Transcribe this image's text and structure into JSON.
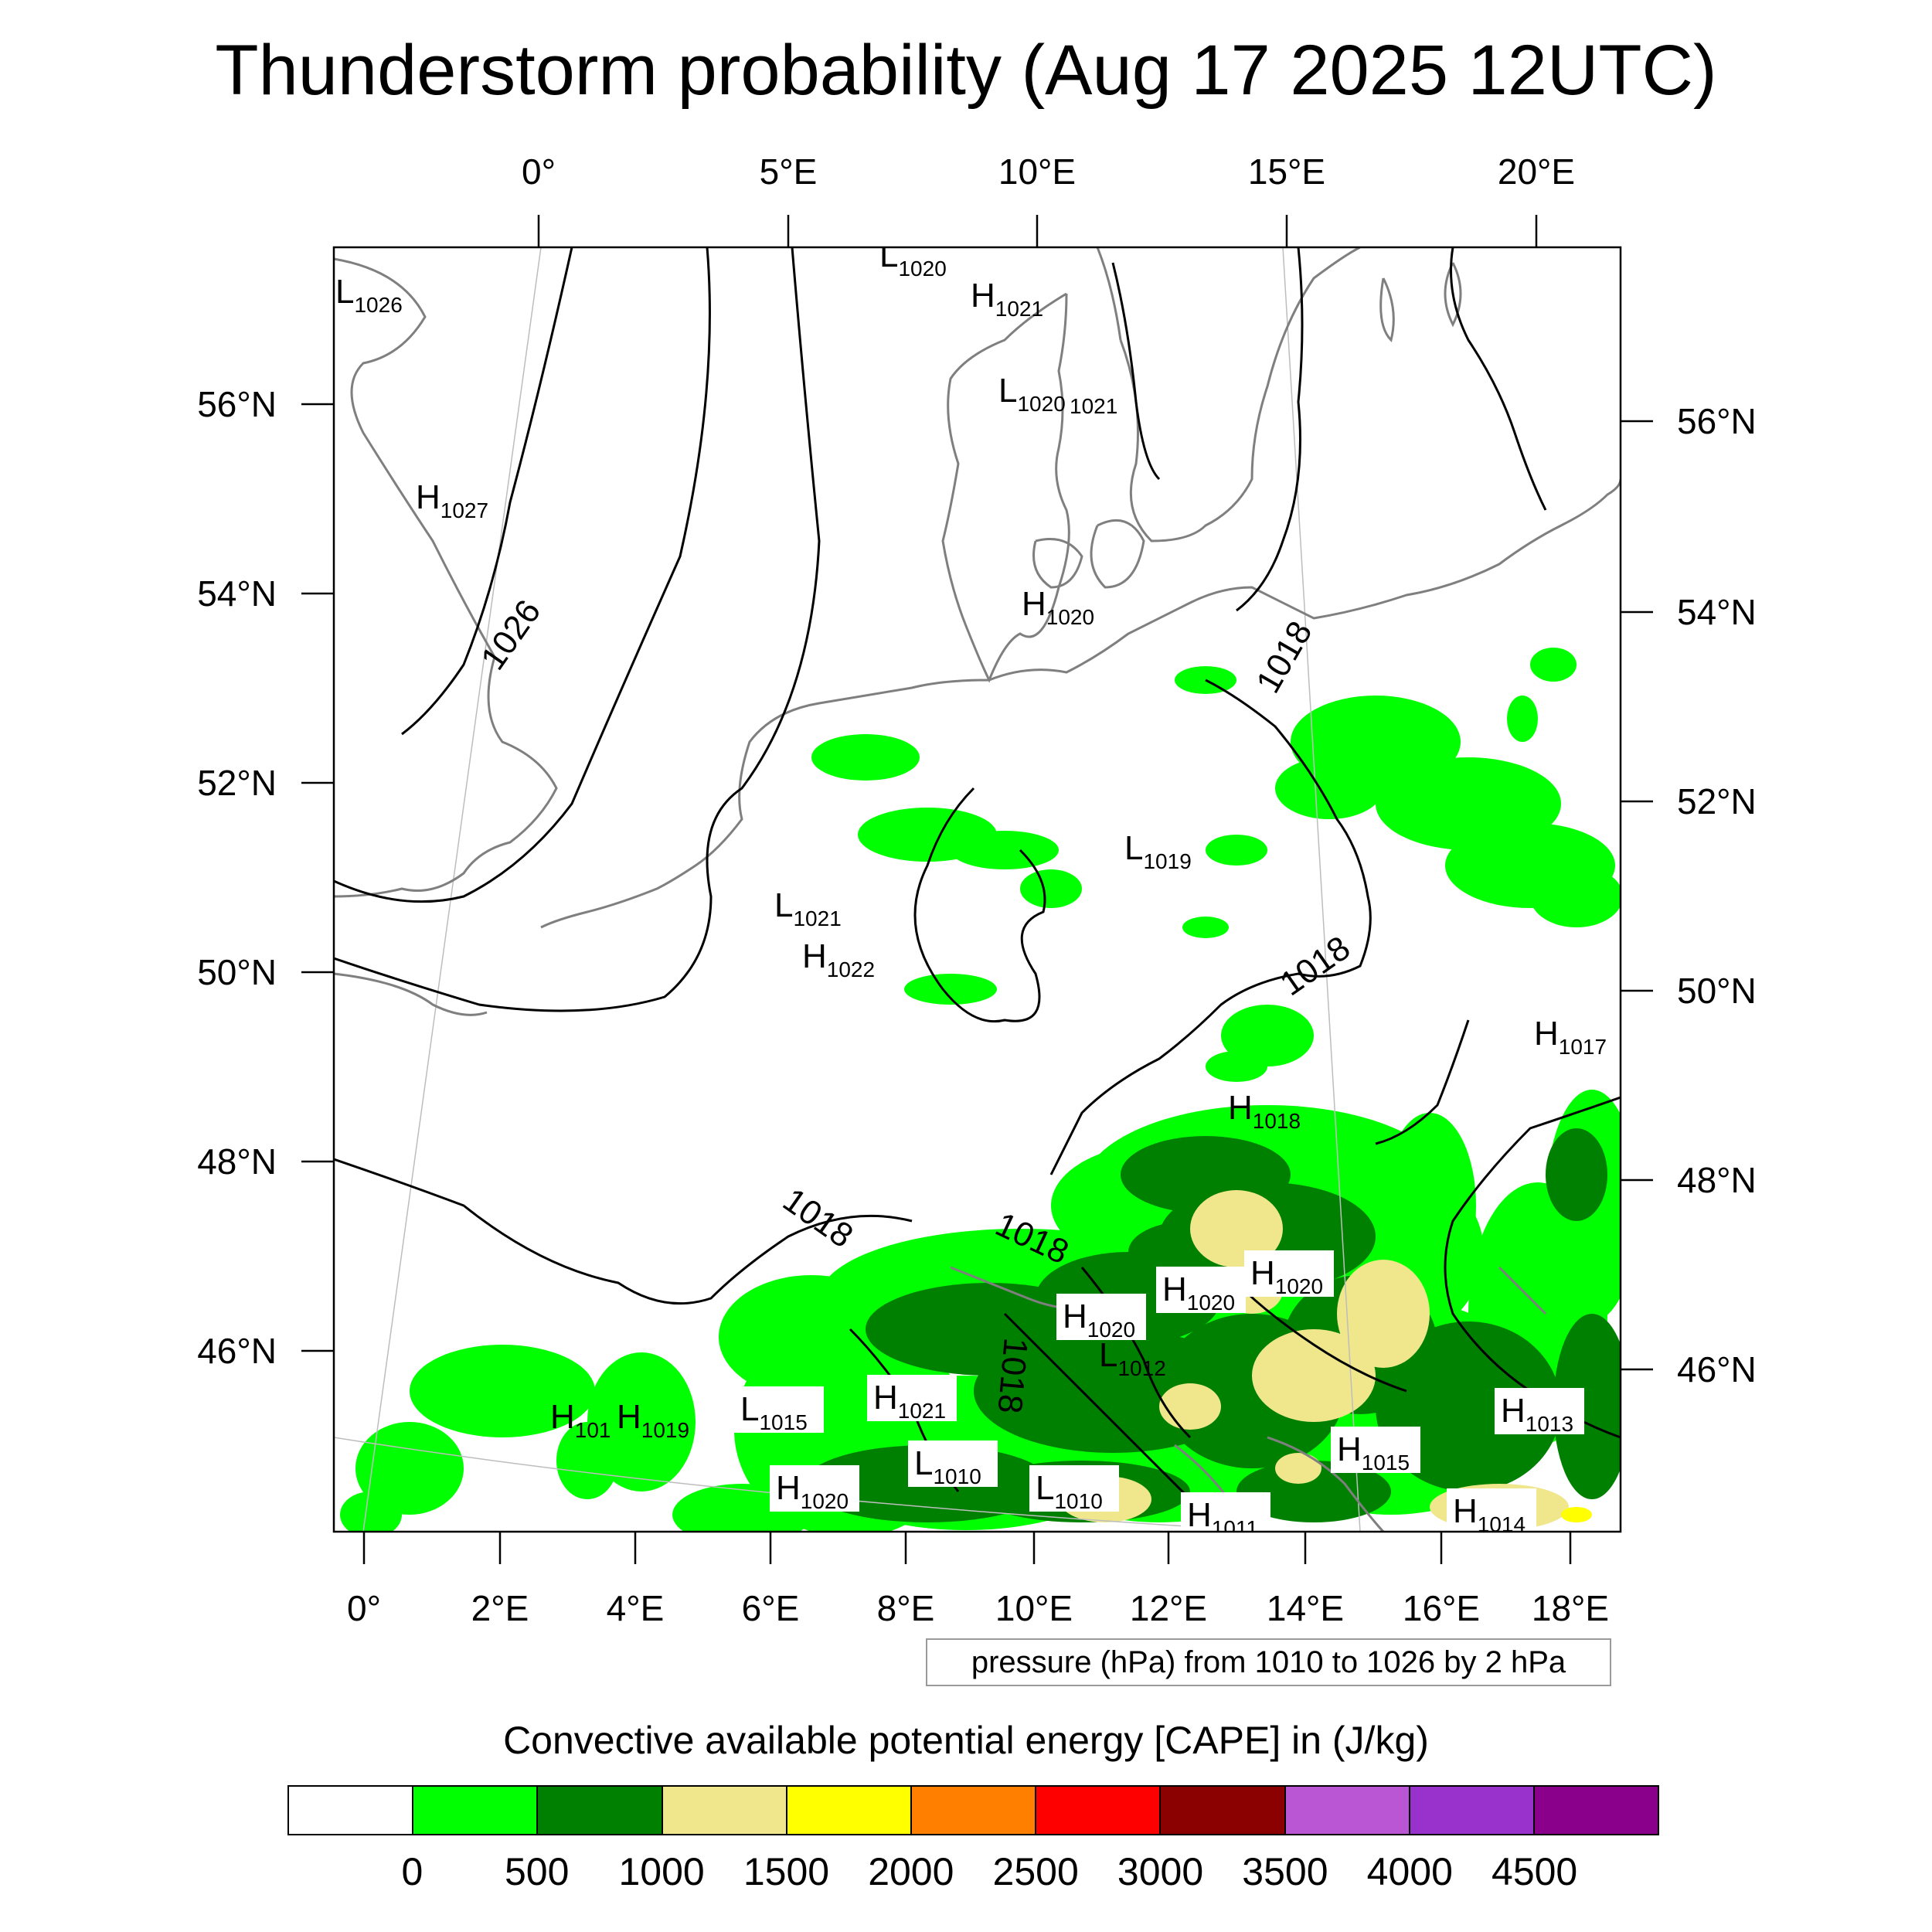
{
  "title": "Thunderstorm probability (Aug 17 2025 12UTC)",
  "map": {
    "top_lon_labels": [
      "0°",
      "5°E",
      "10°E",
      "15°E",
      "20°E"
    ],
    "bottom_lon_labels": [
      "0°",
      "2°E",
      "4°E",
      "6°E",
      "8°E",
      "10°E",
      "12°E",
      "14°E",
      "16°E",
      "18°E"
    ],
    "left_lat_labels": [
      "56°N",
      "54°N",
      "52°N",
      "50°N",
      "48°N",
      "46°N"
    ],
    "right_lat_labels": [
      "56°N",
      "54°N",
      "52°N",
      "50°N",
      "48°N",
      "46°N"
    ],
    "isobar_labels": [
      "1026",
      "1018",
      "1018",
      "1018",
      "1018",
      "1018"
    ],
    "pressure_centers": [
      {
        "type": "L",
        "value": "1026"
      },
      {
        "type": "H",
        "value": "1027"
      },
      {
        "type": "L",
        "value": "1020"
      },
      {
        "type": "H",
        "value": "1021"
      },
      {
        "type": "L",
        "value": "1020"
      },
      {
        "type": "",
        "value": "1021"
      },
      {
        "type": "H",
        "value": "1020"
      },
      {
        "type": "L",
        "value": "1019"
      },
      {
        "type": "L",
        "value": "1021"
      },
      {
        "type": "H",
        "value": "1022"
      },
      {
        "type": "H",
        "value": "1017"
      },
      {
        "type": "H",
        "value": "1018"
      },
      {
        "type": "H",
        "value": "1020"
      },
      {
        "type": "H",
        "value": "1020"
      },
      {
        "type": "H",
        "value": "1020"
      },
      {
        "type": "L",
        "value": "1012"
      },
      {
        "type": "H",
        "value": "101"
      },
      {
        "type": "H",
        "value": "1019"
      },
      {
        "type": "L",
        "value": "1015"
      },
      {
        "type": "H",
        "value": "1021"
      },
      {
        "type": "L",
        "value": "1010"
      },
      {
        "type": "L",
        "value": "1010"
      },
      {
        "type": "H",
        "value": "1020"
      },
      {
        "type": "H",
        "value": "1011"
      },
      {
        "type": "H",
        "value": "1015"
      },
      {
        "type": "H",
        "value": "1013"
      },
      {
        "type": "H",
        "value": "1014"
      }
    ]
  },
  "pressure_info": "pressure (hPa) from 1010 to 1026 by 2 hPa",
  "legend": {
    "title": "Convective available potential energy [CAPE] in (J/kg)",
    "colors": [
      "#ffffff",
      "#00ff00",
      "#008000",
      "#f0e68c",
      "#ffff00",
      "#ff8000",
      "#ff0000",
      "#8b0000",
      "#ba55d3",
      "#9932cc",
      "#8b008b"
    ],
    "labels": [
      "0",
      "500",
      "1000",
      "1500",
      "2000",
      "2500",
      "3000",
      "3500",
      "4000",
      "4500"
    ]
  }
}
